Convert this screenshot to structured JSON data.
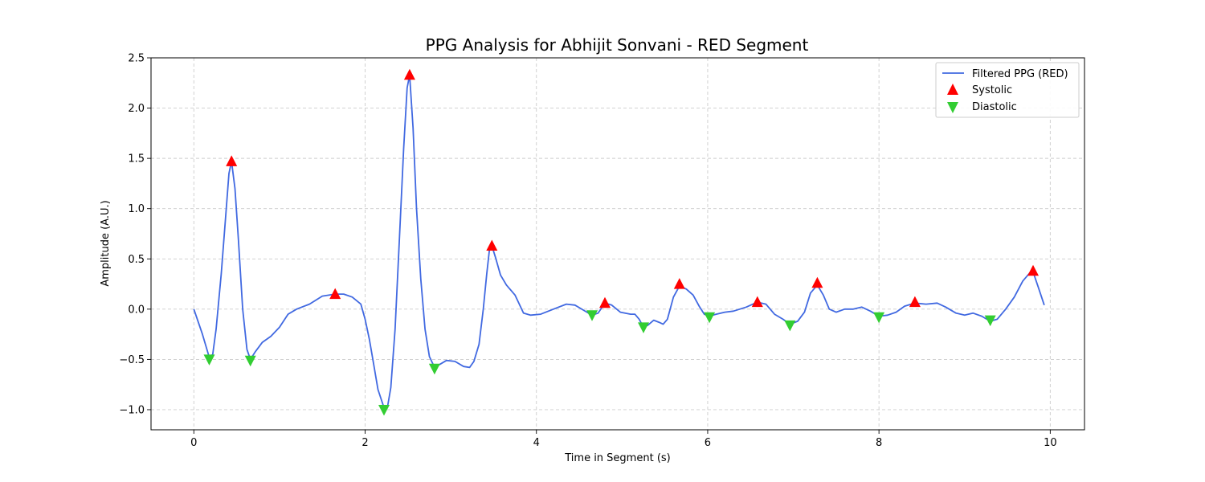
{
  "chart_data": {
    "type": "line",
    "title": "PPG Analysis for Abhijit Sonvani - RED Segment",
    "xlabel": "Time in Segment (s)",
    "ylabel": "Amplitude (A.U.)",
    "xlim": [
      -0.5,
      10.4
    ],
    "ylim": [
      -1.2,
      2.5
    ],
    "xticks": [
      0,
      2,
      4,
      6,
      8,
      10
    ],
    "yticks": [
      -1.0,
      -0.5,
      0.0,
      0.5,
      1.0,
      1.5,
      2.0,
      2.5
    ],
    "grid": true,
    "legend_position": "top-right",
    "series": [
      {
        "name": "Filtered PPG (RED)",
        "kind": "line",
        "color": "#4169e1",
        "points": [
          [
            0.0,
            0.0
          ],
          [
            0.1,
            -0.25
          ],
          [
            0.18,
            -0.48
          ],
          [
            0.22,
            -0.45
          ],
          [
            0.26,
            -0.2
          ],
          [
            0.32,
            0.35
          ],
          [
            0.37,
            0.9
          ],
          [
            0.41,
            1.35
          ],
          [
            0.44,
            1.47
          ],
          [
            0.48,
            1.2
          ],
          [
            0.52,
            0.7
          ],
          [
            0.57,
            0.0
          ],
          [
            0.62,
            -0.4
          ],
          [
            0.66,
            -0.5
          ],
          [
            0.72,
            -0.42
          ],
          [
            0.8,
            -0.33
          ],
          [
            0.9,
            -0.27
          ],
          [
            1.0,
            -0.18
          ],
          [
            1.1,
            -0.05
          ],
          [
            1.2,
            0.0
          ],
          [
            1.35,
            0.05
          ],
          [
            1.5,
            0.13
          ],
          [
            1.65,
            0.15
          ],
          [
            1.75,
            0.15
          ],
          [
            1.85,
            0.12
          ],
          [
            1.95,
            0.05
          ],
          [
            2.0,
            -0.1
          ],
          [
            2.05,
            -0.3
          ],
          [
            2.1,
            -0.55
          ],
          [
            2.15,
            -0.8
          ],
          [
            2.22,
            -0.98
          ],
          [
            2.26,
            -0.98
          ],
          [
            2.3,
            -0.78
          ],
          [
            2.35,
            -0.2
          ],
          [
            2.4,
            0.7
          ],
          [
            2.45,
            1.6
          ],
          [
            2.49,
            2.2
          ],
          [
            2.52,
            2.33
          ],
          [
            2.56,
            1.8
          ],
          [
            2.6,
            1.0
          ],
          [
            2.65,
            0.3
          ],
          [
            2.7,
            -0.2
          ],
          [
            2.75,
            -0.47
          ],
          [
            2.81,
            -0.58
          ],
          [
            2.87,
            -0.55
          ],
          [
            2.95,
            -0.51
          ],
          [
            3.05,
            -0.52
          ],
          [
            3.15,
            -0.57
          ],
          [
            3.22,
            -0.58
          ],
          [
            3.27,
            -0.52
          ],
          [
            3.33,
            -0.35
          ],
          [
            3.38,
            0.0
          ],
          [
            3.42,
            0.35
          ],
          [
            3.45,
            0.58
          ],
          [
            3.48,
            0.63
          ],
          [
            3.52,
            0.52
          ],
          [
            3.58,
            0.34
          ],
          [
            3.65,
            0.24
          ],
          [
            3.75,
            0.14
          ],
          [
            3.85,
            -0.04
          ],
          [
            3.93,
            -0.06
          ],
          [
            4.05,
            -0.05
          ],
          [
            4.2,
            0.0
          ],
          [
            4.35,
            0.05
          ],
          [
            4.45,
            0.04
          ],
          [
            4.55,
            -0.01
          ],
          [
            4.65,
            -0.06
          ],
          [
            4.72,
            -0.04
          ],
          [
            4.8,
            0.06
          ],
          [
            4.88,
            0.04
          ],
          [
            4.98,
            -0.03
          ],
          [
            5.1,
            -0.05
          ],
          [
            5.15,
            -0.05
          ],
          [
            5.2,
            -0.1
          ],
          [
            5.25,
            -0.18
          ],
          [
            5.3,
            -0.16
          ],
          [
            5.37,
            -0.11
          ],
          [
            5.43,
            -0.13
          ],
          [
            5.48,
            -0.15
          ],
          [
            5.53,
            -0.1
          ],
          [
            5.6,
            0.12
          ],
          [
            5.67,
            0.23
          ],
          [
            5.75,
            0.2
          ],
          [
            5.83,
            0.14
          ],
          [
            5.9,
            0.03
          ],
          [
            5.96,
            -0.05
          ],
          [
            6.02,
            -0.07
          ],
          [
            6.1,
            -0.05
          ],
          [
            6.2,
            -0.03
          ],
          [
            6.3,
            -0.02
          ],
          [
            6.45,
            0.02
          ],
          [
            6.58,
            0.07
          ],
          [
            6.68,
            0.05
          ],
          [
            6.78,
            -0.05
          ],
          [
            6.88,
            -0.1
          ],
          [
            6.96,
            -0.15
          ],
          [
            7.05,
            -0.12
          ],
          [
            7.13,
            -0.03
          ],
          [
            7.2,
            0.16
          ],
          [
            7.28,
            0.24
          ],
          [
            7.35,
            0.14
          ],
          [
            7.42,
            0.0
          ],
          [
            7.5,
            -0.03
          ],
          [
            7.6,
            0.0
          ],
          [
            7.7,
            0.0
          ],
          [
            7.8,
            0.02
          ],
          [
            7.9,
            -0.02
          ],
          [
            8.0,
            -0.07
          ],
          [
            8.1,
            -0.06
          ],
          [
            8.2,
            -0.03
          ],
          [
            8.3,
            0.03
          ],
          [
            8.42,
            0.06
          ],
          [
            8.55,
            0.05
          ],
          [
            8.68,
            0.06
          ],
          [
            8.78,
            0.02
          ],
          [
            8.9,
            -0.04
          ],
          [
            9.0,
            -0.06
          ],
          [
            9.1,
            -0.04
          ],
          [
            9.2,
            -0.07
          ],
          [
            9.3,
            -0.12
          ],
          [
            9.38,
            -0.1
          ],
          [
            9.48,
            0.0
          ],
          [
            9.58,
            0.12
          ],
          [
            9.68,
            0.28
          ],
          [
            9.76,
            0.36
          ],
          [
            9.8,
            0.37
          ],
          [
            9.86,
            0.22
          ],
          [
            9.93,
            0.04
          ]
        ]
      },
      {
        "name": "Systolic",
        "kind": "marker",
        "marker": "triangle-up",
        "color": "#ff0000",
        "points": [
          [
            0.44,
            1.47
          ],
          [
            1.65,
            0.15
          ],
          [
            2.52,
            2.33
          ],
          [
            3.48,
            0.63
          ],
          [
            4.8,
            0.06
          ],
          [
            5.67,
            0.25
          ],
          [
            6.58,
            0.07
          ],
          [
            7.28,
            0.26
          ],
          [
            8.42,
            0.07
          ],
          [
            9.8,
            0.38
          ]
        ]
      },
      {
        "name": "Diastolic",
        "kind": "marker",
        "marker": "triangle-down",
        "color": "#32cd32",
        "points": [
          [
            0.18,
            -0.5
          ],
          [
            0.66,
            -0.51
          ],
          [
            2.22,
            -1.0
          ],
          [
            2.81,
            -0.59
          ],
          [
            4.65,
            -0.06
          ],
          [
            5.25,
            -0.18
          ],
          [
            6.02,
            -0.08
          ],
          [
            6.96,
            -0.16
          ],
          [
            8.0,
            -0.08
          ],
          [
            9.3,
            -0.11
          ]
        ]
      }
    ]
  }
}
